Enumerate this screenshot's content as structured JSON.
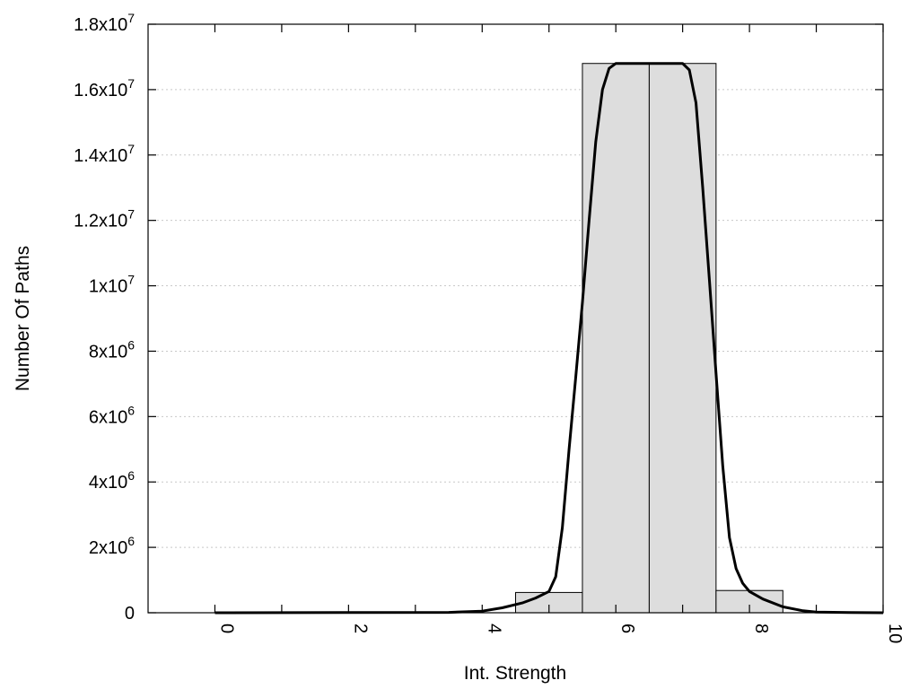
{
  "chart_data": {
    "type": "bar",
    "xlabel": "Int. Strength",
    "ylabel": "Number Of Paths",
    "xlim": [
      -1,
      10
    ],
    "ylim": [
      0,
      18000000
    ],
    "grid": "horizontal dotted",
    "x_ticks": [
      {
        "value": 0,
        "label": "0"
      },
      {
        "value": 2,
        "label": "2"
      },
      {
        "value": 4,
        "label": "4"
      },
      {
        "value": 6,
        "label": "6"
      },
      {
        "value": 8,
        "label": "8"
      },
      {
        "value": 10,
        "label": "10"
      }
    ],
    "x_minor_ticks": [
      1,
      3,
      5,
      7,
      9
    ],
    "y_ticks": [
      {
        "value": 0,
        "mantissa": "0",
        "exponent": ""
      },
      {
        "value": 2000000,
        "mantissa": "2x10",
        "exponent": "6"
      },
      {
        "value": 4000000,
        "mantissa": "4x10",
        "exponent": "6"
      },
      {
        "value": 6000000,
        "mantissa": "6x10",
        "exponent": "6"
      },
      {
        "value": 8000000,
        "mantissa": "8x10",
        "exponent": "6"
      },
      {
        "value": 10000000,
        "mantissa": "1x10",
        "exponent": "7"
      },
      {
        "value": 12000000,
        "mantissa": "1.2x10",
        "exponent": "7"
      },
      {
        "value": 14000000,
        "mantissa": "1.4x10",
        "exponent": "7"
      },
      {
        "value": 16000000,
        "mantissa": "1.6x10",
        "exponent": "7"
      },
      {
        "value": 18000000,
        "mantissa": "1.8x10",
        "exponent": "7"
      }
    ],
    "bars": [
      {
        "x": 0,
        "value": 0
      },
      {
        "x": 1,
        "value": 0
      },
      {
        "x": 2,
        "value": 0
      },
      {
        "x": 3,
        "value": 0
      },
      {
        "x": 4,
        "value": 0
      },
      {
        "x": 5,
        "value": 620000
      },
      {
        "x": 6,
        "value": 16800000
      },
      {
        "x": 7,
        "value": 16800000
      },
      {
        "x": 8,
        "value": 680000
      },
      {
        "x": 9,
        "value": 0
      }
    ],
    "bar_width": 1,
    "curve": {
      "x": [
        0,
        3.5,
        4,
        4.3,
        4.6,
        4.8,
        5.0,
        5.1,
        5.2,
        5.3,
        5.4,
        5.5,
        5.6,
        5.7,
        5.8,
        5.9,
        6.0,
        6.5,
        7.0,
        7.1,
        7.2,
        7.3,
        7.4,
        7.5,
        7.6,
        7.7,
        7.8,
        7.9,
        8.0,
        8.2,
        8.5,
        8.8,
        9.0,
        9.5,
        10.0
      ],
      "y": [
        0,
        10000,
        50000,
        150000,
        300000,
        450000,
        650000,
        1100000,
        2600000,
        5000000,
        7200000,
        9500000,
        12000000,
        14400000,
        16000000,
        16650000,
        16800000,
        16800000,
        16800000,
        16600000,
        15600000,
        13000000,
        10200000,
        7300000,
        4500000,
        2300000,
        1350000,
        900000,
        650000,
        420000,
        180000,
        60000,
        20000,
        5000,
        0
      ]
    }
  }
}
